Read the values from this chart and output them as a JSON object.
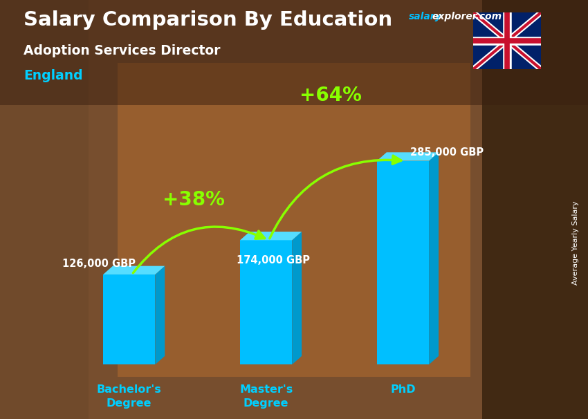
{
  "title": "Salary Comparison By Education",
  "subtitle": "Adoption Services Director",
  "location": "England",
  "side_label": "Average Yearly Salary",
  "categories": [
    "Bachelor's\nDegree",
    "Master's\nDegree",
    "PhD"
  ],
  "values": [
    126000,
    174000,
    285000
  ],
  "value_labels": [
    "126,000 GBP",
    "174,000 GBP",
    "285,000 GBP"
  ],
  "pct_labels": [
    "+38%",
    "+64%"
  ],
  "bar_color": "#00BFFF",
  "bar_color_top": "#55DDFF",
  "bar_color_side": "#0099CC",
  "pct_color": "#88FF00",
  "title_color": "#FFFFFF",
  "subtitle_color": "#FFFFFF",
  "location_color": "#00CFFF",
  "label_color": "#FFFFFF",
  "watermark_salary_color": "#00BFFF",
  "watermark_explorer_color": "#FFFFFF",
  "tick_color": "#00CFFF",
  "bg_color": "#6B4423",
  "ylim": [
    0,
    340000
  ],
  "figsize": [
    8.5,
    6.06
  ],
  "dpi": 100
}
